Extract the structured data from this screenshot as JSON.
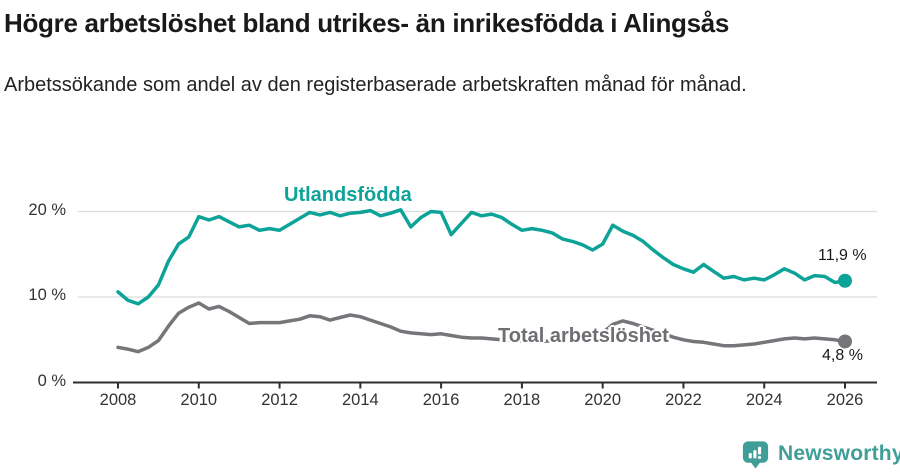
{
  "page": {
    "title": "Högre arbetslöshet bland utrikes- än inrikesfödda i Alingsås",
    "subtitle": "Arbetssökande som andel av den registerbaserade arbetskraften månad för månad."
  },
  "branding": {
    "logo_text": "Newsworthy",
    "logo_icon": "bar-chart-speech-bubble-icon",
    "brand_color": "#3F9E97"
  },
  "chart_data": {
    "type": "line",
    "title": "",
    "xlabel": "",
    "ylabel": "",
    "unit": "%",
    "grid": "horizontal",
    "legend_position": "inline-labels",
    "x_range": [
      2008,
      2026
    ],
    "x_step": 0.25,
    "ylim": [
      0,
      23
    ],
    "x_ticks": [
      "2008",
      "2010",
      "2012",
      "2014",
      "2016",
      "2018",
      "2020",
      "2022",
      "2024",
      "2026"
    ],
    "y_ticks": [
      {
        "value": 0,
        "label": "0 %"
      },
      {
        "value": 10,
        "label": "10 %"
      },
      {
        "value": 20,
        "label": "20 %"
      }
    ],
    "colors": {
      "gridline": "#DCDCDC",
      "axis": "#2E2E2E",
      "tick_text": "#333333"
    },
    "series": [
      {
        "id": "utlandsfodda",
        "label": "Utlandsfödda",
        "color": "#0DA398",
        "end_label": "11,9 %",
        "last_value": 11.9,
        "values": [
          10.6,
          9.6,
          9.2,
          10.0,
          11.4,
          14.2,
          16.2,
          17.0,
          19.4,
          19.0,
          19.4,
          18.8,
          18.2,
          18.4,
          17.8,
          18.0,
          17.8,
          18.5,
          19.2,
          19.9,
          19.6,
          19.9,
          19.5,
          19.8,
          19.9,
          20.1,
          19.5,
          19.8,
          20.2,
          18.2,
          19.3,
          20.0,
          19.9,
          17.3,
          18.6,
          19.9,
          19.5,
          19.7,
          19.3,
          18.5,
          17.8,
          18.0,
          17.8,
          17.5,
          16.8,
          16.5,
          16.1,
          15.5,
          16.2,
          18.4,
          17.7,
          17.2,
          16.5,
          15.5,
          14.6,
          13.8,
          13.3,
          12.9,
          13.8,
          13.0,
          12.2,
          12.4,
          12.0,
          12.2,
          12.0,
          12.6,
          13.3,
          12.8,
          12.0,
          12.5,
          12.4,
          11.7,
          11.9
        ]
      },
      {
        "id": "total",
        "label": "Total arbetslöshet",
        "color": "#76767A",
        "end_label": "4,8 %",
        "last_value": 4.8,
        "values": [
          4.1,
          3.9,
          3.6,
          4.1,
          4.9,
          6.6,
          8.1,
          8.8,
          9.3,
          8.6,
          8.9,
          8.3,
          7.6,
          6.9,
          7.0,
          7.0,
          7.0,
          7.2,
          7.4,
          7.8,
          7.7,
          7.3,
          7.6,
          7.9,
          7.7,
          7.3,
          6.9,
          6.5,
          6.0,
          5.8,
          5.7,
          5.6,
          5.7,
          5.5,
          5.3,
          5.2,
          5.2,
          5.1,
          5.0,
          4.9,
          4.9,
          4.8,
          4.8,
          4.9,
          5.0,
          5.1,
          5.2,
          5.4,
          5.8,
          6.8,
          7.2,
          6.9,
          6.5,
          6.1,
          5.7,
          5.3,
          5.0,
          4.8,
          4.7,
          4.5,
          4.3,
          4.3,
          4.4,
          4.5,
          4.7,
          4.9,
          5.1,
          5.2,
          5.1,
          5.2,
          5.1,
          5.0,
          4.8
        ]
      }
    ]
  }
}
